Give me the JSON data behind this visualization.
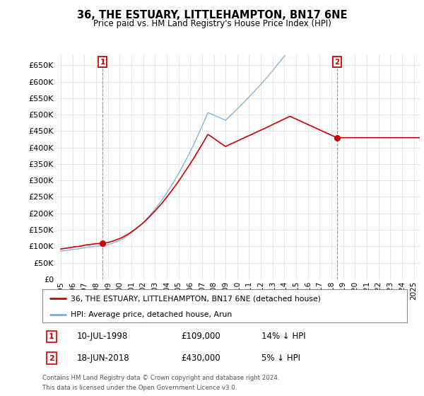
{
  "title": "36, THE ESTUARY, LITTLEHAMPTON, BN17 6NE",
  "subtitle": "Price paid vs. HM Land Registry's House Price Index (HPI)",
  "legend_line1": "36, THE ESTUARY, LITTLEHAMPTON, BN17 6NE (detached house)",
  "legend_line2": "HPI: Average price, detached house, Arun",
  "t1_date": "10-JUL-1998",
  "t1_price": "£109,000",
  "t1_hpi": "14% ↓ HPI",
  "t1_year": 1998.54,
  "t1_value": 109000,
  "t2_date": "18-JUN-2018",
  "t2_price": "£430,000",
  "t2_hpi": "5% ↓ HPI",
  "t2_year": 2018.46,
  "t2_value": 430000,
  "red_color": "#cc0000",
  "blue_color": "#7ab0d4",
  "grid_color": "#e0e0e0",
  "footer1": "Contains HM Land Registry data © Crown copyright and database right 2024.",
  "footer2": "This data is licensed under the Open Government Licence v3.0.",
  "yticks": [
    0,
    50000,
    100000,
    150000,
    200000,
    250000,
    300000,
    350000,
    400000,
    450000,
    500000,
    550000,
    600000,
    650000
  ]
}
